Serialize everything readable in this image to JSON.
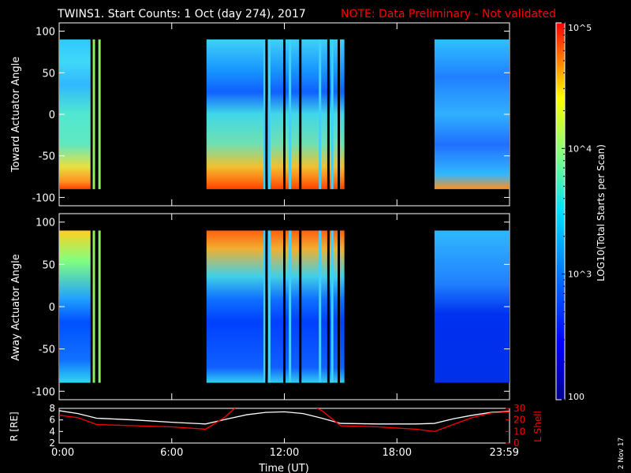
{
  "title_main": "TWINS1. Start Counts:  1 Oct (day 274), 2017",
  "title_note": "NOTE: Data Preliminary - Not validated",
  "date_stamp": "2 Nov 17",
  "colors": {
    "note": "#ff0000",
    "l_shell_line": "#ff0000",
    "r_line": "#ffffff"
  },
  "colorbar": {
    "label": "LOG10(Total Starts per Scan)",
    "tick_labels": [
      "100",
      "10^3",
      "10^4",
      "10^5"
    ],
    "scale": "log",
    "range": [
      100,
      100000
    ]
  },
  "chart_data": [
    {
      "type": "heatmap",
      "ylabel": "Toward Actuator Angle",
      "ylim": [
        -110,
        110
      ],
      "yticks": [
        -100,
        -50,
        0,
        50,
        100
      ],
      "xlim_hours": [
        0,
        24
      ],
      "data_blocks": [
        {
          "start_h": 0.0,
          "end_h": 1.67
        },
        {
          "start_h": 7.85,
          "end_h": 15.2
        },
        {
          "start_h": 20.0,
          "end_h": 24.0
        }
      ],
      "data_lines_h": [
        1.85,
        2.15,
        10.95,
        11.05,
        11.2,
        12.0,
        12.3,
        12.85,
        13.9,
        14.35,
        14.55,
        14.9
      ]
    },
    {
      "type": "heatmap",
      "ylabel": "Away Actuator Angle",
      "ylim": [
        -110,
        110
      ],
      "yticks": [
        -100,
        -50,
        0,
        50,
        100
      ],
      "xlim_hours": [
        0,
        24
      ],
      "data_blocks": [
        {
          "start_h": 0.0,
          "end_h": 1.67
        },
        {
          "start_h": 7.85,
          "end_h": 15.2
        },
        {
          "start_h": 20.0,
          "end_h": 24.0
        }
      ],
      "data_lines_h": [
        1.85,
        2.15,
        10.95,
        11.05,
        11.2,
        12.0,
        12.3,
        12.85,
        13.9,
        14.35,
        14.55,
        14.9
      ]
    },
    {
      "type": "line",
      "ylabel_left": "R [RE]",
      "ylabel_right": "L Shell",
      "yticks_left": [
        2,
        4,
        6,
        8
      ],
      "yticks_right": [
        0,
        10,
        20,
        30
      ],
      "ylim_left": [
        2,
        8
      ],
      "ylim_right": [
        0,
        30
      ],
      "xlabel": "Time (UT)",
      "xtick_labels": [
        "0:00",
        "6:00",
        "12:00",
        "18:00",
        "23:59"
      ],
      "xtick_hours": [
        0,
        6,
        12,
        18,
        24
      ],
      "series": [
        {
          "axis": "left",
          "x": [
            0,
            1,
            2,
            4,
            6,
            7.8,
            9,
            10,
            11,
            12,
            13,
            14,
            15,
            17,
            19,
            20,
            21,
            22,
            23,
            24
          ],
          "y": [
            7.6,
            7.1,
            6.3,
            6.0,
            5.6,
            5.3,
            6.2,
            6.9,
            7.3,
            7.4,
            7.1,
            6.3,
            5.4,
            5.3,
            5.3,
            5.4,
            6.2,
            6.8,
            7.3,
            7.5
          ]
        },
        {
          "axis": "right",
          "x": [
            0,
            1,
            2,
            4,
            6,
            7.8,
            8.8,
            9.7,
            10.5,
            13.2,
            14,
            15,
            17,
            19,
            20,
            21,
            22,
            23,
            24
          ],
          "y": [
            24,
            22,
            16,
            15,
            14,
            12,
            22,
            35,
            35,
            35,
            28,
            15,
            14,
            12,
            10,
            16,
            22,
            26,
            27
          ]
        }
      ]
    }
  ]
}
